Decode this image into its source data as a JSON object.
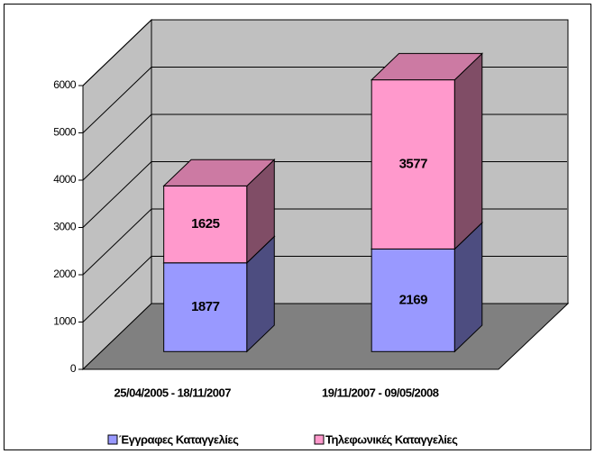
{
  "chart_data": {
    "type": "bar",
    "stacked": true,
    "categories": [
      "25/04/2005 - 18/11/2007",
      "19/11/2007 - 09/05/2008"
    ],
    "series": [
      {
        "name": "Έγγραφες Καταγγελίες",
        "color": "#9999ff",
        "values": [
          1877,
          2169
        ]
      },
      {
        "name": "Τηλεφωνικές Καταγγελίες",
        "color": "#ff99cc",
        "values": [
          1625,
          3577
        ]
      }
    ],
    "ylim": [
      0,
      6000
    ],
    "yticks": [
      0,
      1000,
      2000,
      3000,
      4000,
      5000,
      6000
    ],
    "grid": true,
    "legend": "bottom"
  }
}
